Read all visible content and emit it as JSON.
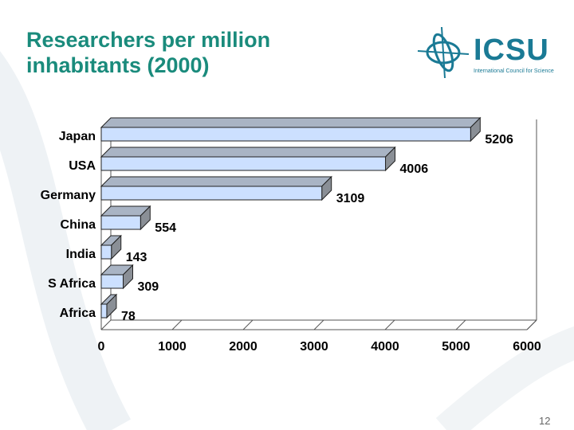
{
  "slide": {
    "title_line1": "Researchers per million",
    "title_line2": "inhabitants (2000)",
    "page_number": "12"
  },
  "logo": {
    "name": "ICSU",
    "subtitle": "International Council for Science"
  },
  "colors": {
    "title": "#1a8b7c",
    "bar_front": "#cce0ff",
    "bar_top": "#a9b4c4",
    "bar_side": "#8a8f96",
    "logo": "#1a7a95"
  },
  "chart_data": {
    "type": "bar",
    "orientation": "horizontal",
    "style": "3d",
    "categories": [
      "Japan",
      "USA",
      "Germany",
      "China",
      "India",
      "S Africa",
      "Africa"
    ],
    "values": [
      5206,
      4006,
      3109,
      554,
      143,
      309,
      78
    ],
    "value_labels": [
      "5206",
      "4006",
      "3109",
      "554",
      "143",
      "309",
      "78"
    ],
    "xlim": [
      0,
      6000
    ],
    "xticks": [
      0,
      1000,
      2000,
      3000,
      4000,
      5000,
      6000
    ],
    "xtick_labels": [
      "0",
      "1000",
      "2000",
      "3000",
      "4000",
      "5000",
      "6000"
    ],
    "title": "",
    "xlabel": "",
    "ylabel": "",
    "grid": false,
    "legend": false
  }
}
